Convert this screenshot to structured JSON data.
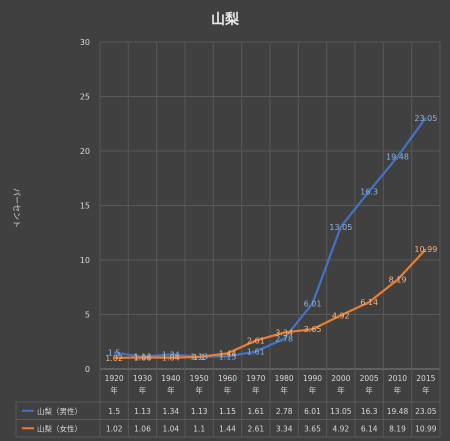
{
  "chart_data": {
    "type": "line",
    "title": "山梨",
    "ylabel": "パーセント",
    "xlabel": "",
    "ylim": [
      0,
      30
    ],
    "yticks": [
      0,
      5,
      10,
      15,
      20,
      25,
      30
    ],
    "grid": true,
    "legend": "table-below",
    "categories": [
      "1920",
      "1930",
      "1940",
      "1950",
      "1960",
      "1970",
      "1980",
      "1990",
      "2000",
      "2005",
      "2010",
      "2015"
    ],
    "category_suffix": "年",
    "series": [
      {
        "name": "山梨（男性）",
        "color": "#4472c4",
        "values": [
          1.5,
          1.13,
          1.34,
          1.13,
          1.15,
          1.61,
          2.78,
          6.01,
          13.05,
          16.3,
          19.48,
          23.05
        ]
      },
      {
        "name": "山梨（女性）",
        "color": "#ed7d31",
        "values": [
          1.02,
          1.06,
          1.04,
          1.1,
          1.44,
          2.61,
          3.34,
          3.65,
          4.92,
          6.14,
          8.19,
          10.99
        ]
      }
    ]
  }
}
